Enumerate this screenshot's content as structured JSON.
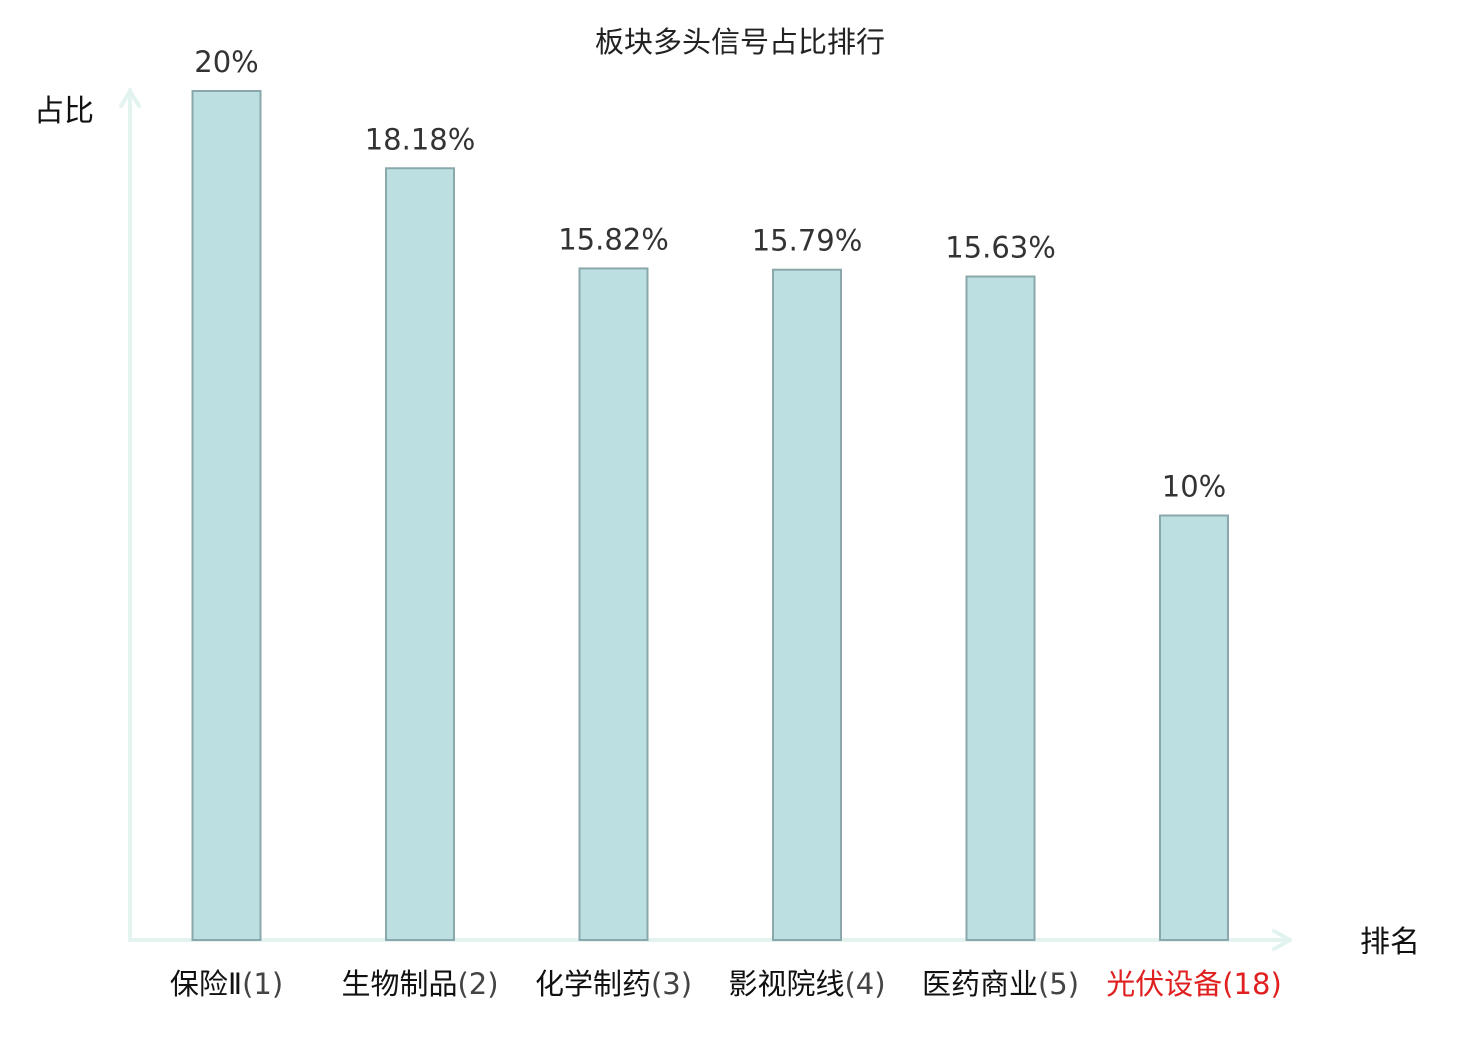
{
  "chart_data": {
    "type": "bar",
    "title": "板块多头信号占比排行",
    "ylabel": "占比",
    "xlabel": "排名",
    "ylim": [
      0,
      20
    ],
    "grid": false,
    "categories": [
      {
        "name": "保险Ⅱ",
        "rank": "(1)",
        "highlight": false
      },
      {
        "name": "生物制品",
        "rank": "(2)",
        "highlight": false
      },
      {
        "name": "化学制药",
        "rank": "(3)",
        "highlight": false
      },
      {
        "name": "影视院线",
        "rank": "(4)",
        "highlight": false
      },
      {
        "name": "医药商业",
        "rank": "(5)",
        "highlight": false
      },
      {
        "name": "光伏设备",
        "rank": "(18)",
        "highlight": true
      }
    ],
    "values": [
      20,
      18.18,
      15.82,
      15.79,
      15.63,
      10
    ],
    "value_labels": [
      "20%",
      "18.18%",
      "15.82%",
      "15.79%",
      "15.63%",
      "10%"
    ],
    "colors": {
      "bar_fill": "#bce0e2",
      "bar_stroke": "#8aa8ab",
      "axis": "#e2f3f0",
      "highlight": "#e02020"
    }
  }
}
